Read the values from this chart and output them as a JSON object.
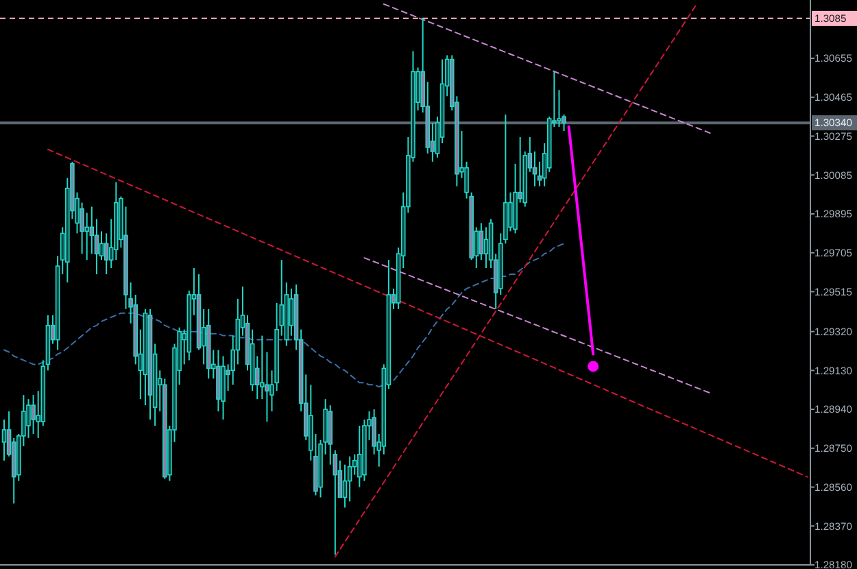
{
  "chart_data": {
    "type": "candlestick",
    "color": "#22d8c8",
    "ylim": [
      1.2818,
      1.3094
    ],
    "tick_labels": "y",
    "grid": false,
    "categories": [
      null,
      null,
      null,
      null,
      null,
      null,
      null,
      null,
      null,
      null,
      null,
      null,
      null,
      null,
      null,
      null,
      null,
      null,
      null,
      null,
      null,
      null,
      null,
      null,
      null,
      null,
      null,
      null,
      null,
      null,
      null,
      null,
      null,
      null,
      null,
      null,
      null,
      null,
      null,
      null,
      null,
      null,
      null,
      null,
      null,
      null,
      null,
      null,
      null,
      null,
      null,
      null,
      null,
      null,
      null,
      null,
      null,
      null,
      null,
      null,
      null,
      null,
      null,
      null,
      null,
      null,
      null,
      null,
      null,
      null,
      null,
      null,
      null,
      null,
      null,
      null,
      null,
      null,
      null,
      null,
      null,
      null,
      null,
      null,
      null,
      null,
      null,
      null,
      null,
      null,
      null,
      null,
      null,
      null,
      null,
      null,
      null,
      null,
      null,
      null,
      null,
      null,
      null,
      null,
      null,
      null,
      null,
      null,
      null,
      null,
      null,
      null,
      null,
      null,
      null,
      null,
      null,
      null,
      null,
      null,
      null,
      null,
      null,
      null,
      null,
      null,
      null,
      null,
      null,
      null,
      null,
      null,
      null,
      null,
      null,
      null,
      null,
      null,
      null,
      null,
      null,
      null,
      null,
      null,
      null,
      null,
      null,
      null,
      null,
      null,
      null,
      null,
      null,
      null,
      null,
      null,
      null,
      null,
      null,
      null,
      null,
      null,
      null,
      null,
      null,
      null
    ],
    "yticks": [
      {
        "value": 1.30655,
        "label": "1.30655"
      },
      {
        "value": 1.30465,
        "label": "1.30465"
      },
      {
        "value": 1.30275,
        "label": "1.30275"
      },
      {
        "value": 1.30085,
        "label": "1.30085"
      },
      {
        "value": 1.29895,
        "label": "1.29895"
      },
      {
        "value": 1.29705,
        "label": "1.29705"
      },
      {
        "value": 1.29515,
        "label": "1.29515"
      },
      {
        "value": 1.2932,
        "label": "1.29320"
      },
      {
        "value": 1.2913,
        "label": "1.29130"
      },
      {
        "value": 1.2894,
        "label": "1.28940"
      },
      {
        "value": 1.2875,
        "label": "1.28750"
      },
      {
        "value": 1.2856,
        "label": "1.28560"
      },
      {
        "value": 1.2837,
        "label": "1.28370"
      },
      {
        "value": 1.2818,
        "label": "1.28180"
      }
    ],
    "ref_lines": [
      {
        "axis": "y",
        "value": 1.3085,
        "label": "1.3085",
        "color": "#ffb8c8",
        "line_style": "dashed"
      },
      {
        "axis": "y",
        "value": 1.3034,
        "label": "1.30340",
        "color": "#5c6670",
        "line_style": "solid"
      }
    ],
    "ohlc": [
      [
        1.2878,
        1.2889,
        1.2869,
        1.2884
      ],
      [
        1.2884,
        1.2893,
        1.2871,
        1.2872
      ],
      [
        1.2878,
        1.288,
        1.2848,
        1.2861
      ],
      [
        1.2862,
        1.2882,
        1.2859,
        1.2881
      ],
      [
        1.2881,
        1.2901,
        1.2876,
        1.2893
      ],
      [
        1.2886,
        1.2899,
        1.288,
        1.2896
      ],
      [
        1.2896,
        1.2901,
        1.2882,
        1.2889
      ],
      [
        1.2888,
        1.2903,
        1.288,
        1.2891
      ],
      [
        1.2888,
        1.2918,
        1.2886,
        1.2915
      ],
      [
        1.2916,
        1.294,
        1.2913,
        1.2935
      ],
      [
        1.2935,
        1.294,
        1.2926,
        1.2928
      ],
      [
        1.2928,
        1.2969,
        1.2923,
        1.2964
      ],
      [
        1.2967,
        1.2983,
        1.296,
        1.298
      ],
      [
        1.2966,
        1.3007,
        1.2956,
        1.3002
      ],
      [
        1.3014,
        1.3015,
        1.2987,
        1.2991
      ],
      [
        1.2985,
        1.3,
        1.298,
        1.2997
      ],
      [
        1.2992,
        1.2995,
        1.297,
        1.2981
      ],
      [
        1.2981,
        1.299,
        1.2967,
        1.2983
      ],
      [
        1.2983,
        1.2993,
        1.297,
        1.2979
      ],
      [
        1.2979,
        1.2987,
        1.296,
        1.297
      ],
      [
        1.2969,
        1.2981,
        1.2967,
        1.2975
      ],
      [
        1.2975,
        1.298,
        1.296,
        1.2967
      ],
      [
        1.2967,
        1.2987,
        1.2963,
        1.2973
      ],
      [
        1.2972,
        1.3005,
        1.2967,
        1.2995
      ],
      [
        1.2977,
        1.2998,
        1.2973,
        1.2997
      ],
      [
        1.2979,
        1.2993,
        1.2943,
        1.295
      ],
      [
        1.2948,
        1.2956,
        1.2936,
        1.2944
      ],
      [
        1.2945,
        1.295,
        1.2916,
        1.292
      ],
      [
        1.2913,
        1.2933,
        1.2899,
        1.2921
      ],
      [
        1.2911,
        1.2943,
        1.2896,
        1.2941
      ],
      [
        1.294,
        1.2943,
        1.2889,
        1.2901
      ],
      [
        1.2895,
        1.2926,
        1.2886,
        1.2921
      ],
      [
        1.2906,
        1.2913,
        1.2893,
        1.2909
      ],
      [
        1.2906,
        1.2909,
        1.286,
        1.2861
      ],
      [
        1.2862,
        1.2886,
        1.2859,
        1.2884
      ],
      [
        1.2884,
        1.2926,
        1.2878,
        1.2924
      ],
      [
        1.2913,
        1.2934,
        1.2906,
        1.2932
      ],
      [
        1.2928,
        1.2933,
        1.2916,
        1.2931
      ],
      [
        1.2922,
        1.2952,
        1.2918,
        1.295
      ],
      [
        1.2948,
        1.2963,
        1.294,
        1.295
      ],
      [
        1.295,
        1.296,
        1.2923,
        1.2924
      ],
      [
        1.2925,
        1.2943,
        1.2916,
        1.2934
      ],
      [
        1.2935,
        1.2943,
        1.2909,
        1.2914
      ],
      [
        1.2914,
        1.2923,
        1.2909,
        1.2916
      ],
      [
        1.2915,
        1.2923,
        1.2893,
        1.2899
      ],
      [
        1.2898,
        1.292,
        1.2889,
        1.2915
      ],
      [
        1.2913,
        1.2916,
        1.2903,
        1.2911
      ],
      [
        1.2913,
        1.293,
        1.2906,
        1.2923
      ],
      [
        1.2923,
        1.2948,
        1.2916,
        1.2938
      ],
      [
        1.2934,
        1.2954,
        1.293,
        1.294
      ],
      [
        1.2936,
        1.294,
        1.2913,
        1.2916
      ],
      [
        1.2906,
        1.2933,
        1.2903,
        1.2926
      ],
      [
        1.2914,
        1.292,
        1.2899,
        1.2906
      ],
      [
        1.2905,
        1.293,
        1.2899,
        1.2907
      ],
      [
        1.2906,
        1.2922,
        1.2888,
        1.2903
      ],
      [
        1.2901,
        1.2913,
        1.2893,
        1.2906
      ],
      [
        1.2907,
        1.2946,
        1.2903,
        1.2933
      ],
      [
        1.2935,
        1.2967,
        1.293,
        1.2945
      ],
      [
        1.2928,
        1.2956,
        1.2925,
        1.295
      ],
      [
        1.2935,
        1.2953,
        1.293,
        1.2948
      ],
      [
        1.295,
        1.2955,
        1.2923,
        1.2928
      ],
      [
        1.2928,
        1.2933,
        1.2893,
        1.2897
      ],
      [
        1.2897,
        1.2911,
        1.2879,
        1.2881
      ],
      [
        1.2874,
        1.2906,
        1.2869,
        1.2891
      ],
      [
        1.2871,
        1.2882,
        1.2852,
        1.2854
      ],
      [
        1.2856,
        1.2879,
        1.2851,
        1.2877
      ],
      [
        1.2878,
        1.2899,
        1.2872,
        1.2894
      ],
      [
        1.2893,
        1.2896,
        1.2867,
        1.2877
      ],
      [
        1.2872,
        1.2874,
        1.2823,
        1.2862
      ],
      [
        1.2864,
        1.2869,
        1.2851,
        1.2851
      ],
      [
        1.2851,
        1.2867,
        1.2846,
        1.2859
      ],
      [
        1.2859,
        1.2871,
        1.2849,
        1.2866
      ],
      [
        1.2866,
        1.2872,
        1.2862,
        1.2869
      ],
      [
        1.2861,
        1.2886,
        1.2856,
        1.2872
      ],
      [
        1.2862,
        1.2889,
        1.2859,
        1.2886
      ],
      [
        1.2886,
        1.2893,
        1.2879,
        1.2889
      ],
      [
        1.289,
        1.2894,
        1.2872,
        1.2876
      ],
      [
        1.2874,
        1.2882,
        1.2866,
        1.2878
      ],
      [
        1.2876,
        1.2916,
        1.2872,
        1.2914
      ],
      [
        1.2906,
        1.2967,
        1.2904,
        1.295
      ],
      [
        1.295,
        1.2953,
        1.2943,
        1.2946
      ],
      [
        1.2946,
        1.2973,
        1.2943,
        1.297
      ],
      [
        1.2969,
        1.3,
        1.2963,
        1.2993
      ],
      [
        1.2993,
        1.3027,
        1.299,
        1.3018
      ],
      [
        1.3017,
        1.3069,
        1.3015,
        1.3059
      ],
      [
        1.3044,
        1.3061,
        1.304,
        1.3059
      ],
      [
        1.3059,
        1.3085,
        1.3039,
        1.3042
      ],
      [
        1.3042,
        1.3054,
        1.3019,
        1.3022
      ],
      [
        1.3025,
        1.3034,
        1.3015,
        1.302
      ],
      [
        1.3019,
        1.3037,
        1.3017,
        1.3034
      ],
      [
        1.3027,
        1.3065,
        1.3024,
        1.3053
      ],
      [
        1.3052,
        1.3067,
        1.3047,
        1.3065
      ],
      [
        1.3065,
        1.3067,
        1.304,
        1.3042
      ],
      [
        1.3044,
        1.3047,
        1.3003,
        1.3009
      ],
      [
        1.301,
        1.303,
        1.3007,
        1.3012
      ],
      [
        1.3,
        1.3015,
        1.2997,
        1.3012
      ],
      [
        1.2998,
        1.3,
        1.2967,
        1.2968
      ],
      [
        1.2969,
        1.2983,
        1.2963,
        1.2981
      ],
      [
        1.2981,
        1.2985,
        1.2967,
        1.297
      ],
      [
        1.297,
        1.2983,
        1.2963,
        1.2977
      ],
      [
        1.2967,
        1.2987,
        1.2963,
        1.2985
      ],
      [
        1.2967,
        1.297,
        1.2943,
        1.2951
      ],
      [
        1.2953,
        1.298,
        1.295,
        1.2975
      ],
      [
        1.2977,
        1.3038,
        1.2975,
        1.2995
      ],
      [
        1.2983,
        1.3,
        1.2981,
        1.2995
      ],
      [
        1.2982,
        1.3014,
        1.298,
        1.3
      ],
      [
        1.3,
        1.3027,
        1.2995,
        1.2997
      ],
      [
        1.2995,
        1.302,
        1.2993,
        1.3018
      ],
      [
        1.3019,
        1.3027,
        1.301,
        1.3012
      ],
      [
        1.3012,
        1.302,
        1.3003,
        1.3009
      ],
      [
        1.3008,
        1.3015,
        1.3003,
        1.3006
      ],
      [
        1.3007,
        1.3024,
        1.3003,
        1.3019
      ],
      [
        1.3012,
        1.3037,
        1.301,
        1.3036
      ],
      [
        1.3035,
        1.3059,
        1.3032,
        1.3034
      ],
      [
        1.3035,
        1.305,
        1.3032,
        1.3036
      ],
      [
        1.3037,
        1.3038,
        1.303,
        1.3034
      ],
      null,
      null,
      null,
      null,
      null,
      null,
      null,
      null,
      null,
      null,
      null,
      null,
      null,
      null,
      null,
      null,
      null,
      null,
      null,
      null,
      null,
      null,
      null,
      null,
      null,
      null,
      null,
      null,
      null,
      null,
      null,
      null,
      null,
      null,
      null,
      null,
      null,
      null,
      null,
      null,
      null,
      null,
      null,
      null,
      null,
      null,
      null,
      null,
      null,
      null
    ],
    "series": [
      {
        "type": "line",
        "color": "#3a70a8",
        "line_style": "dashed",
        "values": [
          1.2923,
          1.2922,
          1.292,
          1.2919,
          1.2918,
          1.2917,
          1.2916,
          1.2916,
          1.2917,
          1.2918,
          1.2919,
          1.2921,
          1.2922,
          1.2924,
          1.2926,
          1.2928,
          1.293,
          1.2932,
          1.2934,
          1.2935,
          1.2937,
          1.2938,
          1.2939,
          1.294,
          1.2941,
          1.2941,
          1.2941,
          1.2941,
          1.294,
          1.2939,
          1.2939,
          1.2938,
          1.2937,
          1.2935,
          1.2934,
          1.2933,
          1.2932,
          1.2932,
          1.2932,
          1.2932,
          1.2932,
          1.2931,
          1.2931,
          1.2931,
          1.2931,
          1.293,
          1.293,
          1.293,
          1.2929,
          1.2929,
          1.2929,
          1.2928,
          1.2928,
          1.2928,
          1.2928,
          1.2928,
          1.2928,
          1.2928,
          1.2928,
          1.2928,
          1.2928,
          1.2928,
          1.2926,
          1.2924,
          1.2922,
          1.292,
          1.2919,
          1.2917,
          1.2916,
          1.2914,
          1.2913,
          1.2911,
          1.2909,
          1.2907,
          1.2907,
          1.2906,
          1.2906,
          1.2905,
          1.2906,
          1.2907,
          1.2908,
          1.2911,
          1.2914,
          1.2917,
          1.292,
          1.2924,
          1.2927,
          1.293,
          1.2934,
          1.2937,
          1.294,
          1.2943,
          1.2945,
          1.2948,
          1.2951,
          1.2953,
          1.2954,
          1.2955,
          1.2956,
          1.2957,
          1.2958,
          1.2958,
          1.2959,
          1.2959,
          1.296,
          1.296,
          1.2962,
          1.2964,
          1.2966,
          1.2967,
          1.2968,
          1.297,
          1.2971,
          1.2973,
          1.2974,
          1.2975,
          null,
          null,
          null,
          null,
          null,
          null,
          null,
          null,
          null,
          null,
          null,
          null,
          null,
          null,
          null,
          null,
          null,
          null,
          null,
          null,
          null,
          null,
          null,
          null,
          null,
          null,
          null,
          null,
          null,
          null,
          null,
          null,
          null,
          null,
          null,
          null,
          null,
          null,
          null,
          null,
          null,
          null,
          null,
          null,
          null,
          null,
          null,
          null,
          null,
          null
        ]
      },
      {
        "type": "line",
        "color": "#d01838",
        "line_style": "dashed",
        "values": [
          null,
          null,
          null,
          null,
          null,
          null,
          null,
          null,
          null,
          1.3021,
          null,
          null,
          null,
          null,
          null,
          null,
          null,
          null,
          null,
          null,
          null,
          null,
          null,
          null,
          null,
          null,
          null,
          null,
          null,
          null,
          null,
          null,
          null,
          null,
          null,
          null,
          null,
          null,
          null,
          null,
          null,
          null,
          null,
          null,
          null,
          null,
          null,
          null,
          null,
          null,
          null,
          null,
          null,
          null,
          null,
          null,
          null,
          null,
          null,
          null,
          null,
          null,
          null,
          null,
          null,
          null,
          null,
          null,
          null,
          null,
          null,
          null,
          null,
          null,
          null,
          null,
          null,
          null,
          null,
          null,
          null,
          null,
          null,
          null,
          null,
          null,
          null,
          null,
          null,
          null,
          null,
          null,
          null,
          null,
          null,
          null,
          null,
          null,
          null,
          null,
          null,
          null,
          null,
          null,
          null,
          null,
          null,
          null,
          null,
          null,
          null,
          null,
          null,
          null,
          null,
          null,
          null,
          null,
          null,
          null,
          null,
          null,
          null,
          null,
          null,
          null,
          null,
          null,
          null,
          null,
          null,
          null,
          null,
          null,
          null,
          null,
          null,
          null,
          null,
          null,
          null,
          null,
          null,
          null,
          null,
          null,
          null,
          null,
          null,
          null,
          null,
          null,
          null,
          null,
          null,
          null,
          null,
          null,
          null,
          null,
          null,
          null,
          null,
          null,
          null,
          1.2861
        ]
      },
      {
        "type": "line",
        "color": "#d01838",
        "line_style": "dashed",
        "values": [
          null,
          null,
          null,
          null,
          null,
          null,
          null,
          null,
          null,
          null,
          null,
          null,
          null,
          null,
          null,
          null,
          null,
          null,
          null,
          null,
          null,
          null,
          null,
          null,
          null,
          null,
          null,
          null,
          null,
          null,
          null,
          null,
          null,
          null,
          null,
          null,
          null,
          null,
          null,
          null,
          null,
          null,
          null,
          null,
          null,
          null,
          null,
          null,
          null,
          null,
          null,
          null,
          null,
          null,
          null,
          null,
          null,
          null,
          null,
          null,
          null,
          null,
          null,
          null,
          null,
          null,
          null,
          null,
          1.2822,
          null,
          null,
          null,
          null,
          null,
          null,
          null,
          null,
          null,
          null,
          null,
          null,
          null,
          null,
          null,
          null,
          null,
          null,
          null,
          null,
          null,
          null,
          null,
          null,
          null,
          null,
          null,
          null,
          null,
          null,
          null,
          null,
          null,
          null,
          null,
          null,
          null,
          null,
          null,
          null,
          null,
          null,
          null,
          null,
          null,
          null,
          null,
          null,
          null,
          null,
          null,
          null,
          null,
          null,
          null,
          null,
          null,
          null,
          null,
          null,
          null,
          null,
          null,
          null,
          null,
          null,
          null,
          null,
          null,
          null,
          null,
          null,
          null,
          1.3091,
          null,
          null,
          null,
          null,
          null,
          null,
          null,
          null,
          null,
          null,
          null,
          null,
          null,
          null,
          null,
          null,
          null,
          null,
          null,
          null,
          null,
          null,
          null
        ]
      },
      {
        "type": "line",
        "color": "#c888d0",
        "line_style": "dashed",
        "values": [
          null,
          null,
          null,
          null,
          null,
          null,
          null,
          null,
          null,
          null,
          null,
          null,
          null,
          null,
          null,
          null,
          null,
          null,
          null,
          null,
          null,
          null,
          null,
          null,
          null,
          null,
          null,
          null,
          null,
          null,
          null,
          null,
          null,
          null,
          null,
          null,
          null,
          null,
          null,
          null,
          null,
          null,
          null,
          null,
          null,
          null,
          null,
          null,
          null,
          null,
          null,
          null,
          null,
          null,
          null,
          null,
          null,
          null,
          null,
          null,
          null,
          null,
          null,
          null,
          null,
          null,
          null,
          null,
          null,
          null,
          null,
          null,
          null,
          null,
          null,
          null,
          null,
          null,
          1.3092,
          null,
          null,
          null,
          null,
          null,
          null,
          null,
          null,
          null,
          null,
          null,
          null,
          null,
          null,
          null,
          null,
          null,
          null,
          null,
          null,
          null,
          null,
          null,
          null,
          null,
          null,
          null,
          null,
          null,
          null,
          null,
          null,
          null,
          null,
          null,
          null,
          null,
          null,
          null,
          null,
          null,
          null,
          null,
          null,
          null,
          null,
          null,
          null,
          null,
          null,
          null,
          null,
          null,
          null,
          null,
          null,
          null,
          null,
          null,
          null,
          null,
          null,
          null,
          null,
          null,
          null,
          1.3029,
          null,
          null,
          null,
          null,
          null,
          null,
          null,
          null,
          null,
          null,
          null,
          null,
          null,
          null,
          null,
          null,
          null,
          null,
          null,
          null
        ]
      },
      {
        "type": "line",
        "color": "#c888d0",
        "line_style": "dashed",
        "values": [
          null,
          null,
          null,
          null,
          null,
          null,
          null,
          null,
          null,
          null,
          null,
          null,
          null,
          null,
          null,
          null,
          null,
          null,
          null,
          null,
          null,
          null,
          null,
          null,
          null,
          null,
          null,
          null,
          null,
          null,
          null,
          null,
          null,
          null,
          null,
          null,
          null,
          null,
          null,
          null,
          null,
          null,
          null,
          null,
          null,
          null,
          null,
          null,
          null,
          null,
          null,
          null,
          null,
          null,
          null,
          null,
          null,
          null,
          null,
          null,
          null,
          null,
          null,
          null,
          null,
          null,
          null,
          null,
          null,
          null,
          null,
          null,
          null,
          null,
          1.2968,
          null,
          null,
          null,
          null,
          null,
          null,
          null,
          null,
          null,
          null,
          null,
          null,
          null,
          null,
          null,
          null,
          null,
          null,
          null,
          null,
          null,
          null,
          null,
          null,
          null,
          null,
          null,
          null,
          null,
          null,
          null,
          null,
          null,
          null,
          null,
          null,
          null,
          null,
          null,
          null,
          null,
          null,
          null,
          null,
          null,
          null,
          null,
          null,
          null,
          null,
          null,
          null,
          null,
          null,
          null,
          null,
          null,
          null,
          null,
          null,
          null,
          null,
          null,
          null,
          null,
          null,
          null,
          null,
          null,
          null,
          1.2902,
          null,
          null,
          null,
          null,
          null,
          null,
          null,
          null,
          null,
          null,
          null,
          null,
          null,
          null,
          null,
          null,
          null,
          null,
          null,
          null
        ]
      },
      {
        "type": "line",
        "color": "#ff00ff",
        "line_style": "solid",
        "values": [
          null,
          null,
          null,
          null,
          null,
          null,
          null,
          null,
          null,
          null,
          null,
          null,
          null,
          null,
          null,
          null,
          null,
          null,
          null,
          null,
          null,
          null,
          null,
          null,
          null,
          null,
          null,
          null,
          null,
          null,
          null,
          null,
          null,
          null,
          null,
          null,
          null,
          null,
          null,
          null,
          null,
          null,
          null,
          null,
          null,
          null,
          null,
          null,
          null,
          null,
          null,
          null,
          null,
          null,
          null,
          null,
          null,
          null,
          null,
          null,
          null,
          null,
          null,
          null,
          null,
          null,
          null,
          null,
          null,
          null,
          null,
          null,
          null,
          null,
          null,
          null,
          null,
          null,
          null,
          null,
          null,
          null,
          null,
          null,
          null,
          null,
          null,
          null,
          null,
          null,
          null,
          null,
          null,
          null,
          null,
          null,
          null,
          null,
          null,
          null,
          null,
          null,
          null,
          null,
          null,
          null,
          null,
          null,
          null,
          null,
          null,
          null,
          null,
          null,
          null,
          null,
          1.3032,
          null,
          null,
          null,
          null,
          1.2921,
          null,
          null,
          null,
          null,
          null,
          null,
          null,
          null,
          null,
          null,
          null,
          null,
          null,
          null,
          null,
          null,
          null,
          null,
          null,
          null,
          null,
          null,
          null,
          null,
          null,
          null,
          null,
          null,
          null,
          null,
          null,
          null,
          null,
          null,
          null,
          null,
          null,
          null,
          null,
          null,
          null,
          null,
          null,
          null
        ]
      },
      {
        "type": "scatter",
        "color": "#ff00ff",
        "marker": "circle",
        "values": [
          null,
          null,
          null,
          null,
          null,
          null,
          null,
          null,
          null,
          null,
          null,
          null,
          null,
          null,
          null,
          null,
          null,
          null,
          null,
          null,
          null,
          null,
          null,
          null,
          null,
          null,
          null,
          null,
          null,
          null,
          null,
          null,
          null,
          null,
          null,
          null,
          null,
          null,
          null,
          null,
          null,
          null,
          null,
          null,
          null,
          null,
          null,
          null,
          null,
          null,
          null,
          null,
          null,
          null,
          null,
          null,
          null,
          null,
          null,
          null,
          null,
          null,
          null,
          null,
          null,
          null,
          null,
          null,
          null,
          null,
          null,
          null,
          null,
          null,
          null,
          null,
          null,
          null,
          null,
          null,
          null,
          null,
          null,
          null,
          null,
          null,
          null,
          null,
          null,
          null,
          null,
          null,
          null,
          null,
          null,
          null,
          null,
          null,
          null,
          null,
          null,
          null,
          null,
          null,
          null,
          null,
          null,
          null,
          null,
          null,
          null,
          null,
          null,
          null,
          null,
          null,
          null,
          null,
          null,
          null,
          null,
          1.2915,
          null,
          null,
          null,
          null,
          null,
          null,
          null,
          null,
          null,
          null,
          null,
          null,
          null,
          null,
          null,
          null,
          null,
          null,
          null,
          null,
          null,
          null,
          null,
          null,
          null,
          null,
          null,
          null,
          null,
          null,
          null,
          null,
          null,
          null,
          null,
          null,
          null,
          null,
          null,
          null,
          null,
          null,
          null,
          null
        ]
      }
    ]
  }
}
